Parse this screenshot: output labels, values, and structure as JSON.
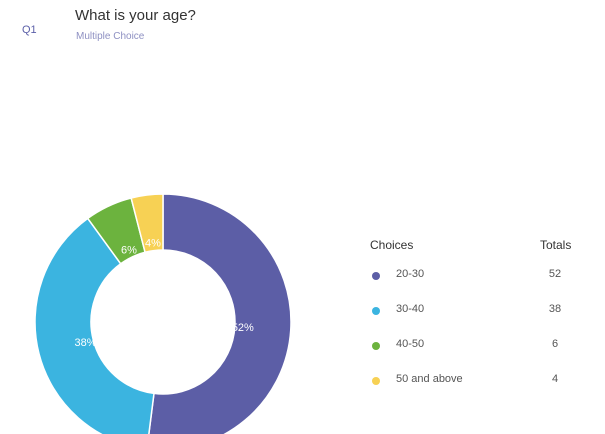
{
  "question": {
    "number": "Q1",
    "title": "What is your age?",
    "type": "Multiple Choice"
  },
  "legend": {
    "choices_header": "Choices",
    "totals_header": "Totals",
    "rows": [
      {
        "label": "20-30",
        "total": "52",
        "color": "#5c5ea6"
      },
      {
        "label": "30-40",
        "total": "38",
        "color": "#3bb4e0"
      },
      {
        "label": "40-50",
        "total": "6",
        "color": "#6cb33e"
      },
      {
        "label": "50 and above",
        "total": "4",
        "color": "#f7d154"
      }
    ]
  },
  "chart_data": {
    "type": "pie",
    "donut": true,
    "categories": [
      "20-30",
      "30-40",
      "40-50",
      "50 and above"
    ],
    "values": [
      52,
      38,
      6,
      4
    ],
    "labels": [
      "52%",
      "38%",
      "6%",
      "4%"
    ],
    "colors": [
      "#5c5ea6",
      "#3bb4e0",
      "#6cb33e",
      "#f7d154"
    ],
    "start_angle_deg": 0,
    "direction": "clockwise"
  }
}
